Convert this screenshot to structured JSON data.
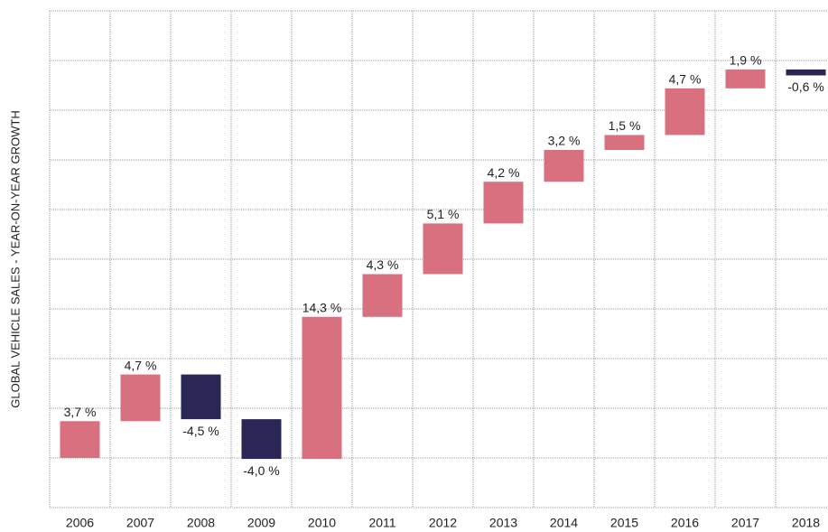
{
  "chart_data": {
    "type": "waterfall",
    "y_axis_label": "GLOBAL VEHICLE SALES - YEAR-ON-YEAR GROWTH",
    "categories": [
      "2006",
      "2007",
      "2008",
      "2009",
      "2010",
      "2011",
      "2012",
      "2013",
      "2014",
      "2015",
      "2016",
      "2017",
      "2018"
    ],
    "values": [
      3.7,
      4.7,
      -4.5,
      -4.0,
      14.3,
      4.3,
      5.1,
      4.2,
      3.2,
      1.5,
      4.7,
      1.9,
      -0.6
    ],
    "value_labels": [
      "3,7 %",
      "4,7 %",
      "-4,5 %",
      "-4,0 %",
      "14,3 %",
      "4,3 %",
      "5,1 %",
      "4,2 %",
      "3,2 %",
      "1,5 %",
      "4,7 %",
      "1,9 %",
      "-0,6 %"
    ],
    "positive_color": "#d9707f",
    "negative_color": "#2a2757",
    "ylim": [
      -5,
      45
    ],
    "yticks": [
      -5,
      0,
      5,
      10,
      15,
      20,
      25,
      30,
      35,
      40,
      45
    ],
    "grid": true
  }
}
